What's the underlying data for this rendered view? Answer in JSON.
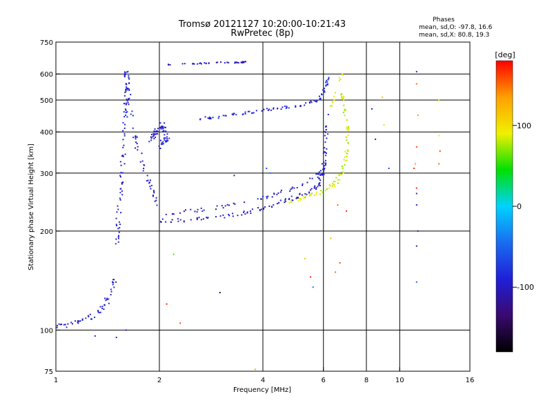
{
  "header": {
    "title_line1": "Tromsø 20121127 10:20:00-10:21:43",
    "title_line2": "RwPretec (8p)",
    "phase_heading": "Phases",
    "phase_o": "mean, sd,O: -97.8, 16.6",
    "phase_x": "mean, sd,X:  80.8, 19.3"
  },
  "chart_data": {
    "type": "scatter",
    "xlabel": "Frequency [MHz]",
    "ylabel": "Stationary phase Virtual Height [km]",
    "xscale": "log",
    "yscale": "log",
    "xlim": [
      1,
      16
    ],
    "ylim": [
      75,
      750
    ],
    "x_ticks": [
      1,
      2,
      4,
      6,
      8,
      10,
      16
    ],
    "y_ticks": [
      75,
      100,
      200,
      300,
      400,
      500,
      600,
      750
    ],
    "x_grid": [
      2,
      4,
      6,
      8,
      10
    ],
    "y_grid": [
      100,
      200,
      300,
      400,
      500,
      600
    ],
    "grid": true,
    "colorbar": {
      "label": "[deg]",
      "range": [
        -180,
        180
      ],
      "ticks": [
        100,
        0,
        -100
      ],
      "stops": [
        "#000000",
        "#3a0a6e",
        "#1f1fd8",
        "#1a6cf0",
        "#00d2ff",
        "#00e000",
        "#f0f000",
        "#ffa000",
        "#ff0000"
      ]
    },
    "traces": [
      {
        "band": [
          [
            1.0,
            102
          ],
          [
            1.1,
            104
          ],
          [
            1.2,
            107
          ],
          [
            1.3,
            112
          ],
          [
            1.4,
            120
          ],
          [
            1.45,
            133
          ],
          [
            1.5,
            145
          ]
        ],
        "spread": 0.04,
        "phase": -95,
        "density": 9
      },
      {
        "band": [
          [
            1.5,
            180
          ],
          [
            1.52,
            220
          ],
          [
            1.55,
            280
          ],
          [
            1.58,
            380
          ],
          [
            1.6,
            470
          ],
          [
            1.62,
            560
          ],
          [
            1.6,
            620
          ]
        ],
        "spread": 0.03,
        "phase": -95,
        "density": 14
      },
      {
        "band": [
          [
            1.6,
            560
          ],
          [
            1.65,
            470
          ],
          [
            1.7,
            380
          ],
          [
            1.8,
            310
          ],
          [
            1.9,
            270
          ],
          [
            2.0,
            235
          ]
        ],
        "spread": 0.03,
        "phase": -95,
        "density": 10
      },
      {
        "band": [
          [
            1.9,
            380
          ],
          [
            1.95,
            400
          ],
          [
            2.05,
            420
          ],
          [
            2.1,
            380
          ],
          [
            2.0,
            360
          ]
        ],
        "spread": 0.04,
        "phase": -95,
        "density": 16
      },
      {
        "band": [
          [
            2.0,
            215
          ],
          [
            2.4,
            216
          ],
          [
            3.0,
            220
          ],
          [
            3.6,
            228
          ],
          [
            4.2,
            238
          ],
          [
            4.8,
            250
          ],
          [
            5.4,
            262
          ],
          [
            5.8,
            275
          ],
          [
            6.0,
            300
          ],
          [
            6.1,
            360
          ],
          [
            6.15,
            450
          ]
        ],
        "spread": 0.025,
        "phase": -95,
        "density": 12
      },
      {
        "band": [
          [
            2.0,
            225
          ],
          [
            2.5,
            230
          ],
          [
            3.0,
            236
          ],
          [
            3.6,
            245
          ],
          [
            4.2,
            255
          ],
          [
            4.8,
            268
          ],
          [
            5.4,
            282
          ],
          [
            5.9,
            300
          ],
          [
            6.1,
            330
          ]
        ],
        "spread": 0.025,
        "phase": -95,
        "density": 8
      },
      {
        "band": [
          [
            2.6,
            440
          ],
          [
            3.0,
            445
          ],
          [
            3.5,
            455
          ],
          [
            4.0,
            465
          ],
          [
            4.6,
            475
          ],
          [
            5.2,
            485
          ],
          [
            5.8,
            500
          ],
          [
            6.1,
            540
          ],
          [
            6.2,
            600
          ]
        ],
        "spread": 0.02,
        "phase": -90,
        "density": 11
      },
      {
        "band": [
          [
            4.8,
            245
          ],
          [
            5.4,
            255
          ],
          [
            6.0,
            265
          ],
          [
            6.5,
            280
          ],
          [
            6.8,
            300
          ],
          [
            7.0,
            340
          ],
          [
            7.05,
            400
          ],
          [
            6.9,
            460
          ],
          [
            6.8,
            520
          ]
        ],
        "spread": 0.025,
        "phase": 85,
        "density": 12
      },
      {
        "band": [
          [
            6.3,
            470
          ],
          [
            6.6,
            540
          ],
          [
            6.8,
            610
          ]
        ],
        "spread": 0.02,
        "phase": 90,
        "density": 6
      },
      {
        "band": [
          [
            2.1,
            640
          ],
          [
            2.6,
            645
          ],
          [
            3.0,
            650
          ],
          [
            3.4,
            650
          ],
          [
            3.6,
            652
          ]
        ],
        "spread": 0.008,
        "phase": -105,
        "density": 10
      }
    ],
    "scatter": [
      {
        "x": 11.2,
        "y": 610,
        "phase": -100
      },
      {
        "x": 11.2,
        "y": 560,
        "phase": 150
      },
      {
        "x": 11.3,
        "y": 450,
        "phase": 140
      },
      {
        "x": 11.2,
        "y": 360,
        "phase": 160
      },
      {
        "x": 11.1,
        "y": 320,
        "phase": 130
      },
      {
        "x": 11.2,
        "y": 270,
        "phase": 170
      },
      {
        "x": 11.2,
        "y": 240,
        "phase": -90
      },
      {
        "x": 11.3,
        "y": 200,
        "phase": -100
      },
      {
        "x": 11.2,
        "y": 180,
        "phase": -110
      },
      {
        "x": 11.2,
        "y": 140,
        "phase": -50
      },
      {
        "x": 11.0,
        "y": 310,
        "phase": 170
      },
      {
        "x": 11.2,
        "y": 260,
        "phase": -100
      },
      {
        "x": 13.0,
        "y": 500,
        "phase": 100
      },
      {
        "x": 13.0,
        "y": 390,
        "phase": 90
      },
      {
        "x": 13.1,
        "y": 350,
        "phase": 160
      },
      {
        "x": 13.0,
        "y": 320,
        "phase": 150
      },
      {
        "x": 8.9,
        "y": 510,
        "phase": 110
      },
      {
        "x": 8.3,
        "y": 470,
        "phase": -100
      },
      {
        "x": 9.0,
        "y": 420,
        "phase": 100
      },
      {
        "x": 8.5,
        "y": 380,
        "phase": -120
      },
      {
        "x": 9.3,
        "y": 310,
        "phase": -70
      },
      {
        "x": 4.1,
        "y": 310,
        "phase": -60
      },
      {
        "x": 2.2,
        "y": 170,
        "phase": 60
      },
      {
        "x": 2.3,
        "y": 105,
        "phase": 160
      },
      {
        "x": 3.0,
        "y": 130,
        "phase": -150
      },
      {
        "x": 2.1,
        "y": 120,
        "phase": 170
      },
      {
        "x": 1.6,
        "y": 100,
        "phase": -90
      },
      {
        "x": 1.5,
        "y": 95,
        "phase": -95
      },
      {
        "x": 1.3,
        "y": 96,
        "phase": -100
      },
      {
        "x": 3.8,
        "y": 76,
        "phase": 130
      },
      {
        "x": 5.3,
        "y": 165,
        "phase": 120
      },
      {
        "x": 5.5,
        "y": 145,
        "phase": 170
      },
      {
        "x": 5.6,
        "y": 135,
        "phase": -40
      },
      {
        "x": 6.3,
        "y": 190,
        "phase": 120
      },
      {
        "x": 6.5,
        "y": 150,
        "phase": 150
      },
      {
        "x": 6.7,
        "y": 160,
        "phase": 160
      },
      {
        "x": 4.2,
        "y": 300,
        "phase": -50
      },
      {
        "x": 3.3,
        "y": 295,
        "phase": -100
      },
      {
        "x": 7.0,
        "y": 230,
        "phase": 170
      },
      {
        "x": 6.6,
        "y": 240,
        "phase": 150
      }
    ]
  }
}
